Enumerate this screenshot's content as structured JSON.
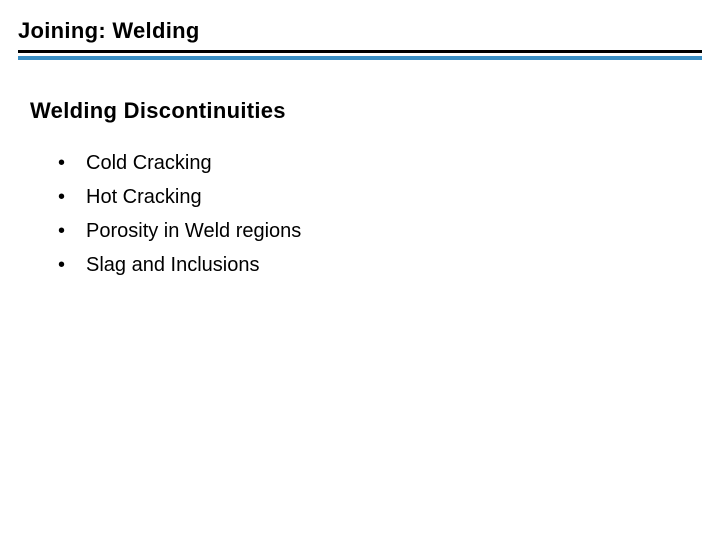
{
  "header": {
    "title": "Joining: Welding",
    "underline_color": "#000000",
    "rule_color": "#3a8fc5"
  },
  "section": {
    "heading": "Welding Discontinuities"
  },
  "bullets": {
    "items": [
      {
        "marker": "•",
        "text": "Cold Cracking"
      },
      {
        "marker": "•",
        "text": "Hot Cracking"
      },
      {
        "marker": "•",
        "text": "Porosity in Weld regions"
      },
      {
        "marker": "•",
        "text": "Slag and Inclusions"
      }
    ]
  },
  "styles": {
    "background_color": "#ffffff",
    "title_fontsize": 22,
    "title_weight": 900,
    "heading_fontsize": 22,
    "heading_weight": 900,
    "body_fontsize": 20,
    "text_color": "#000000"
  }
}
